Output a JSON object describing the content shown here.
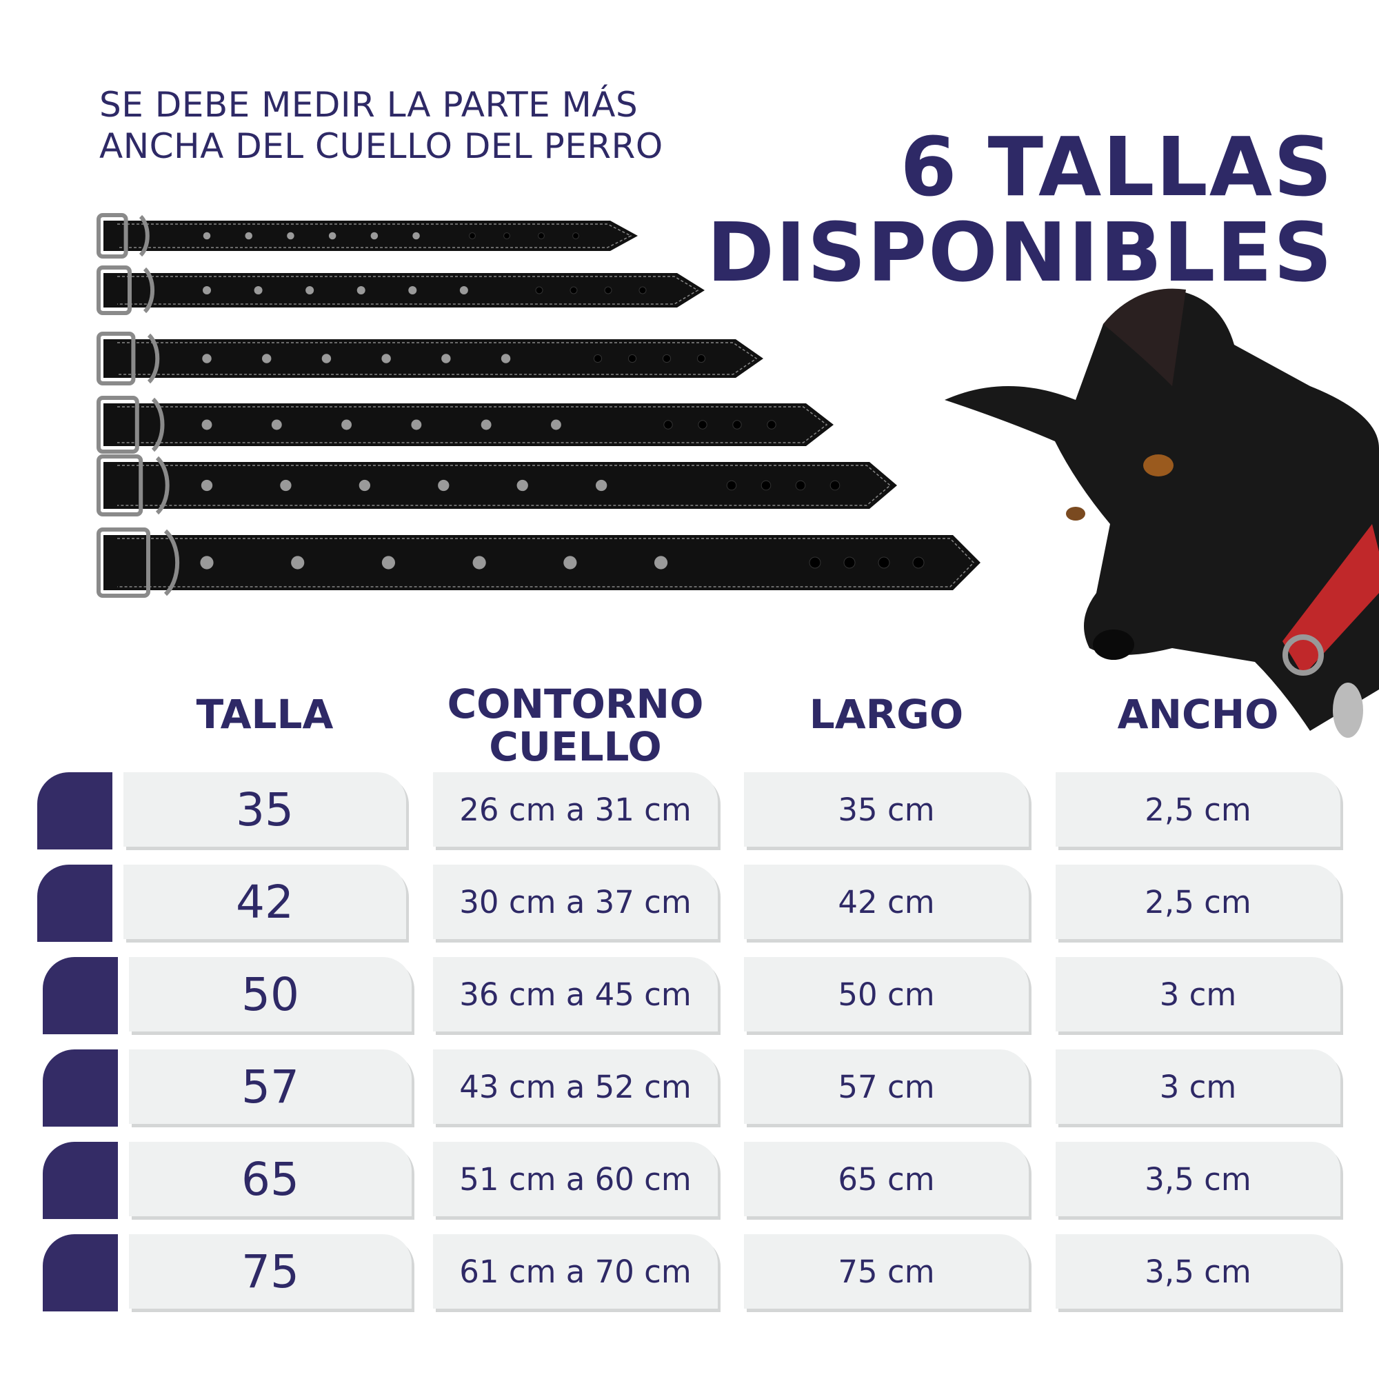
{
  "instruction": "SE DEBE MEDIR LA PARTE MÁS ANCHA DEL CUELLO DEL PERRO",
  "title": [
    "6 TALLAS",
    "DISPONIBLES"
  ],
  "table": {
    "headers": [
      "TALLA",
      "CONTORNO CUELLO",
      "LARGO",
      "ANCHO"
    ],
    "rows": [
      [
        "35",
        "26 cm a 31 cm",
        "35 cm",
        "2,5 cm"
      ],
      [
        "42",
        "30 cm a 37 cm",
        "42 cm",
        "2,5 cm"
      ],
      [
        "50",
        "36 cm a 45 cm",
        "50 cm",
        "3 cm"
      ],
      [
        "57",
        "43 cm a 52 cm",
        "57 cm",
        "3 cm"
      ],
      [
        "65",
        "51 cm a 60 cm",
        "65 cm",
        "3,5 cm"
      ],
      [
        "75",
        "61 cm a 70 cm",
        "75 cm",
        "3,5 cm"
      ]
    ]
  }
}
